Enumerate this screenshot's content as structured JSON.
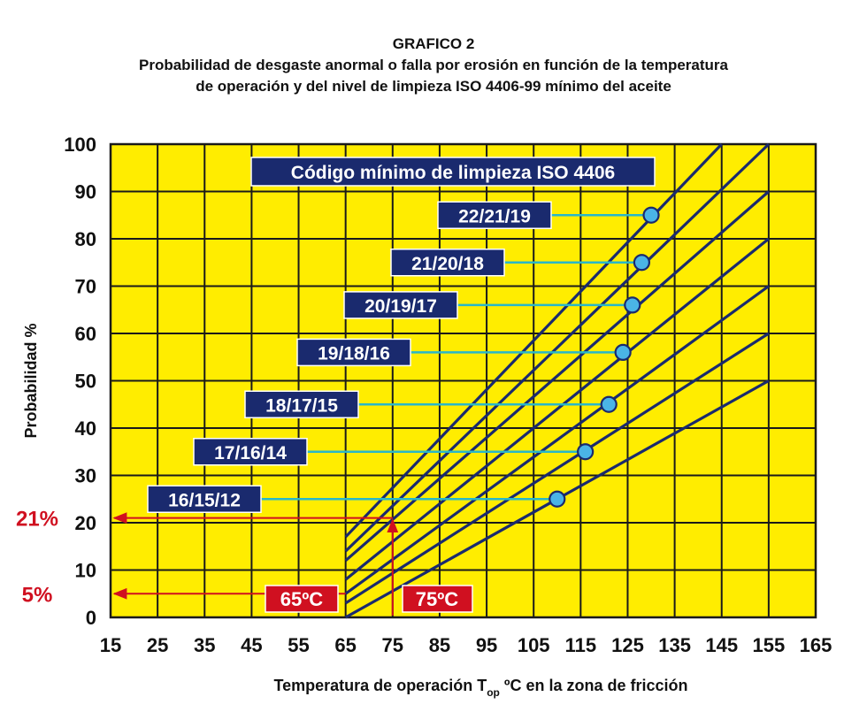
{
  "chart_data": {
    "type": "line",
    "title": "GRAFICO 2",
    "subtitle_line1": "Probabilidad de desgaste anormal o falla por erosión en función de la temperatura",
    "subtitle_line2": "de operación y del nivel de limpieza ISO 4406-99 mínimo del aceite",
    "xlabel_main": "Temperatura de operación T",
    "xlabel_sub": "op",
    "xlabel_tail": " ºC en la zona de fricción",
    "ylabel": "Probabilidad %",
    "xlim": [
      15,
      165
    ],
    "ylim": [
      0,
      100
    ],
    "x_ticks": [
      "15",
      "25",
      "35",
      "45",
      "55",
      "65",
      "75",
      "85",
      "95",
      "105",
      "115",
      "125",
      "135",
      "145",
      "155",
      "165"
    ],
    "y_ticks": [
      "0",
      "10",
      "20",
      "30",
      "40",
      "50",
      "60",
      "70",
      "80",
      "90",
      "100"
    ],
    "legend_title": "Código mínimo de limpieza ISO 4406",
    "series": [
      {
        "name": "16/15/12",
        "x": [
          65,
          155
        ],
        "y": [
          0,
          50
        ],
        "marker": {
          "x": 110,
          "y": 25
        }
      },
      {
        "name": "17/16/14",
        "x": [
          65,
          155
        ],
        "y": [
          3,
          60
        ],
        "marker": {
          "x": 116,
          "y": 35
        }
      },
      {
        "name": "18/17/15",
        "x": [
          65,
          155
        ],
        "y": [
          5,
          70
        ],
        "marker": {
          "x": 121,
          "y": 45
        }
      },
      {
        "name": "19/18/16",
        "x": [
          65,
          155
        ],
        "y": [
          8,
          80
        ],
        "marker": {
          "x": 124,
          "y": 56
        }
      },
      {
        "name": "20/19/17",
        "x": [
          65,
          155
        ],
        "y": [
          12,
          90
        ],
        "marker": {
          "x": 126,
          "y": 66
        }
      },
      {
        "name": "21/20/18",
        "x": [
          65,
          155
        ],
        "y": [
          14,
          100
        ],
        "marker": {
          "x": 128,
          "y": 75
        }
      },
      {
        "name": "22/21/19",
        "x": [
          65,
          145
        ],
        "y": [
          17,
          100
        ],
        "marker": {
          "x": 130,
          "y": 85
        }
      }
    ],
    "annotations": {
      "t65_label": "65ºC",
      "t75_label": "75ºC",
      "p5_label": "5%",
      "p21_label": "21%",
      "t65": 65,
      "t75": 75,
      "p5": 5,
      "p21": 21
    },
    "colors": {
      "plot_bg": "#ffed00",
      "grid": "#1a1a1a",
      "line": "#1a2a6e",
      "label_box": "#1a2a6e",
      "connector": "#29b7c9",
      "marker_fill": "#4ab4e6",
      "annotation_red": "#d01020"
    }
  }
}
